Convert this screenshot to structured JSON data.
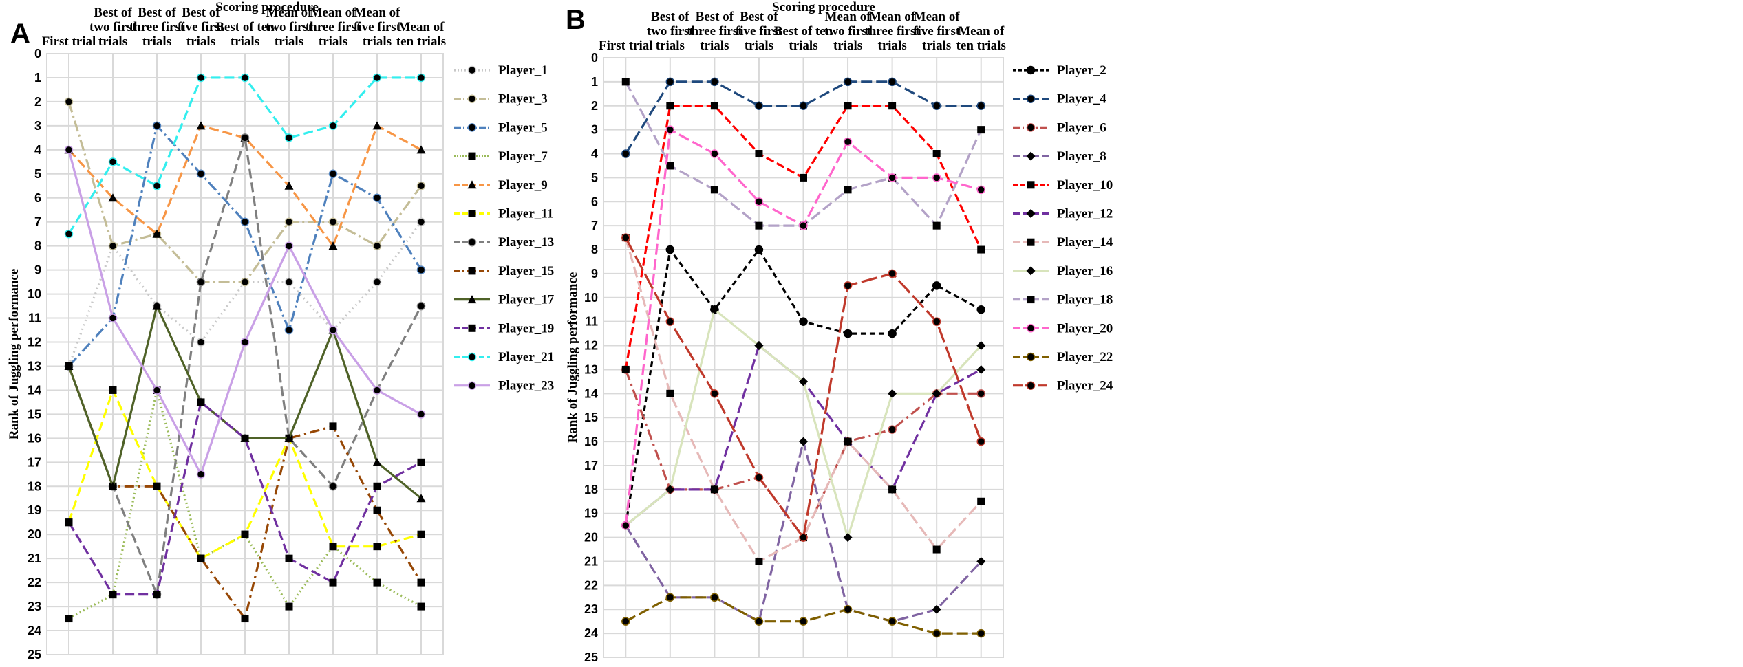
{
  "chart_data": [
    {
      "panel": "A",
      "type": "line",
      "title": "Scoring procedure",
      "xlabel": "Scoring procedure",
      "ylabel": "Rank of Juggling performance",
      "ylim": [
        0,
        25
      ],
      "y_ticks": [
        0,
        1,
        2,
        3,
        4,
        5,
        6,
        7,
        8,
        9,
        10,
        11,
        12,
        13,
        14,
        15,
        16,
        17,
        18,
        19,
        20,
        21,
        22,
        23,
        24,
        25
      ],
      "grid": true,
      "legend": "right",
      "categories": [
        [
          "First trial"
        ],
        [
          "Best of",
          "two first",
          "trials"
        ],
        [
          "Best of",
          "three first",
          "trials"
        ],
        [
          "Best of",
          "five first",
          "trials"
        ],
        [
          "Best of ten",
          "trials"
        ],
        [
          "Mean of",
          "two first",
          "trials"
        ],
        [
          "Mean of",
          "three first",
          "trials"
        ],
        [
          "Mean of",
          "five first",
          "trials"
        ],
        [
          "Mean of",
          "ten trials"
        ]
      ],
      "series": [
        {
          "name": "Player_1",
          "color": "#c8c8c8",
          "dash": "2 5",
          "marker": "circle",
          "values": [
            13,
            8,
            10.5,
            12,
            9.5,
            9.5,
            11.5,
            9.5,
            7
          ]
        },
        {
          "name": "Player_3",
          "color": "#c4bd97",
          "dash": "16 5 3 5",
          "marker": "circle",
          "values": [
            2,
            8,
            7.5,
            9.5,
            9.5,
            7,
            7,
            8,
            5.5
          ]
        },
        {
          "name": "Player_5",
          "color": "#4f81bd",
          "dash": "16 5 3 5",
          "marker": "circle",
          "values": [
            13,
            11,
            3,
            5,
            7,
            11.5,
            5,
            6,
            9
          ]
        },
        {
          "name": "Player_7",
          "color": "#9bbb59",
          "dash": "2 4",
          "marker": "square",
          "values": [
            23.5,
            22.5,
            14,
            21,
            20,
            23,
            20.5,
            22,
            23
          ]
        },
        {
          "name": "Player_9",
          "color": "#f79646",
          "dash": "14 6",
          "marker": "triangle",
          "values": [
            4,
            6,
            7.5,
            3,
            3.5,
            5.5,
            8,
            3,
            4
          ]
        },
        {
          "name": "Player_11",
          "color": "#ffff00",
          "dash": "14 6",
          "marker": "square",
          "values": [
            19.5,
            14,
            18,
            21,
            20,
            16,
            20.5,
            20.5,
            20
          ]
        },
        {
          "name": "Player_13",
          "color": "#7f7f7f",
          "dash": "14 6",
          "marker": "circle",
          "values": [
            13,
            18,
            22.5,
            9.5,
            3.5,
            16,
            18,
            14,
            10.5
          ]
        },
        {
          "name": "Player_15",
          "color": "#974806",
          "dash": "14 6 3 6",
          "marker": "square",
          "values": [
            13,
            18,
            18,
            21,
            23.5,
            16,
            15.5,
            19,
            22
          ]
        },
        {
          "name": "Player_17",
          "color": "#4f6228",
          "dash": "",
          "marker": "triangle",
          "values": [
            13,
            18,
            10.5,
            14.5,
            16,
            16,
            11.5,
            17,
            18.5
          ]
        },
        {
          "name": "Player_19",
          "color": "#7030a0",
          "dash": "14 6",
          "marker": "square",
          "values": [
            19.5,
            22.5,
            22.5,
            14.5,
            16,
            21,
            22,
            18,
            17
          ]
        },
        {
          "name": "Player_21",
          "color": "#33eeee",
          "dash": "14 6",
          "marker": "circle",
          "values": [
            7.5,
            4.5,
            5.5,
            1,
            1,
            3.5,
            3,
            1,
            1
          ]
        },
        {
          "name": "Player_23",
          "color": "#c9a0e6",
          "dash": "",
          "marker": "circle",
          "values": [
            4,
            11,
            14,
            17.5,
            12,
            8,
            11.5,
            14,
            15
          ]
        }
      ]
    },
    {
      "panel": "B",
      "type": "line",
      "title": "Scoring procedure",
      "xlabel": "Scoring procedure",
      "ylabel": "Rank of Juggling performance",
      "ylim": [
        0,
        25
      ],
      "y_ticks": [
        0,
        1,
        2,
        3,
        4,
        5,
        6,
        7,
        8,
        9,
        10,
        11,
        12,
        13,
        14,
        15,
        16,
        17,
        18,
        19,
        20,
        21,
        22,
        23,
        24,
        25
      ],
      "grid": true,
      "legend": "right",
      "categories": [
        [
          "First trial"
        ],
        [
          "Best of",
          "two first",
          "trials"
        ],
        [
          "Best of",
          "three first",
          "trials"
        ],
        [
          "Best of",
          "five first",
          "trials"
        ],
        [
          "Best of ten",
          "trials"
        ],
        [
          "Mean of",
          "two first",
          "trials"
        ],
        [
          "Mean of",
          "three first",
          "trials"
        ],
        [
          "Mean of",
          "five first",
          "trials"
        ],
        [
          "Mean of",
          "ten trials"
        ]
      ],
      "series": [
        {
          "name": "Player_2",
          "color": "#000000",
          "dash": "8 5",
          "marker": "circle",
          "values": [
            19.5,
            8,
            10.5,
            8,
            11,
            11.5,
            11.5,
            9.5,
            10.5
          ]
        },
        {
          "name": "Player_4",
          "color": "#1f497d",
          "dash": "16 6",
          "marker": "circle",
          "values": [
            4,
            1,
            1,
            2,
            2,
            1,
            1,
            2,
            2
          ]
        },
        {
          "name": "Player_6",
          "color": "#c0504d",
          "dash": "16 6 3 6",
          "marker": "circle",
          "values": [
            13,
            18,
            18,
            17.5,
            20,
            16,
            15.5,
            14,
            14
          ]
        },
        {
          "name": "Player_8",
          "color": "#8064a2",
          "dash": "16 6",
          "marker": "diamond",
          "values": [
            19.5,
            22.5,
            22.5,
            23.5,
            16,
            23,
            23.5,
            23,
            21
          ]
        },
        {
          "name": "Player_10",
          "color": "#ff0000",
          "dash": "12 5",
          "marker": "square",
          "values": [
            13,
            2,
            2,
            4,
            5,
            2,
            2,
            4,
            8
          ]
        },
        {
          "name": "Player_12",
          "color": "#7030a0",
          "dash": "16 6",
          "marker": "diamond",
          "values": [
            19.5,
            18,
            18,
            12,
            13.5,
            16,
            18,
            14,
            13
          ]
        },
        {
          "name": "Player_14",
          "color": "#e6b9b8",
          "dash": "16 6",
          "marker": "square",
          "values": [
            7.5,
            14,
            18,
            21,
            20,
            16,
            18,
            20.5,
            18.5
          ]
        },
        {
          "name": "Player_16",
          "color": "#d8e4bc",
          "dash": "",
          "marker": "diamond",
          "values": [
            19.5,
            18,
            10.5,
            12,
            13.5,
            20,
            14,
            14,
            12
          ]
        },
        {
          "name": "Player_18",
          "color": "#b3a2c7",
          "dash": "16 6",
          "marker": "square",
          "values": [
            1,
            4.5,
            5.5,
            7,
            7,
            5.5,
            5,
            7,
            3
          ]
        },
        {
          "name": "Player_20",
          "color": "#ff66cc",
          "dash": "16 6",
          "marker": "circle",
          "values": [
            19.5,
            3,
            4,
            6,
            7,
            3.5,
            5,
            5,
            5.5
          ]
        },
        {
          "name": "Player_22",
          "color": "#7f5f00",
          "dash": "16 6",
          "marker": "circle",
          "values": [
            23.5,
            22.5,
            22.5,
            23.5,
            23.5,
            23,
            23.5,
            24,
            24
          ]
        },
        {
          "name": "Player_24",
          "color": "#c0392b",
          "dash": "24 6",
          "marker": "circle",
          "values": [
            7.5,
            11,
            14,
            17.5,
            20,
            9.5,
            9,
            11,
            16
          ]
        }
      ]
    }
  ]
}
